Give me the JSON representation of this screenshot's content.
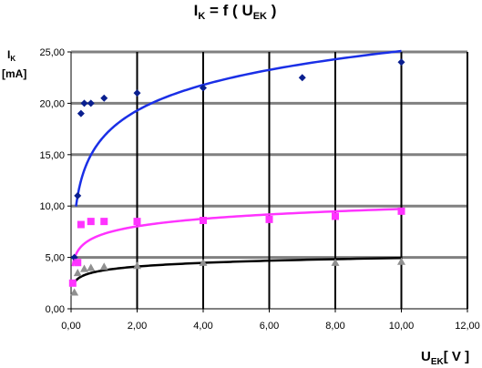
{
  "chart_data": {
    "type": "scatter",
    "title": {
      "main": "I",
      "sub": "K",
      "mid": " = f ( U",
      "sub2": "EK",
      "end": " )"
    },
    "ylabel": {
      "main": "I",
      "sub": "K",
      "unit": "[mA]"
    },
    "xlabel": {
      "main": "U",
      "sub": "EK",
      "unit": "[ V ]"
    },
    "xlim": [
      0,
      12
    ],
    "ylim": [
      0,
      25
    ],
    "xticks": [
      "0,00",
      "2,00",
      "4,00",
      "6,00",
      "8,00",
      "10,00",
      "12,00"
    ],
    "yticks": [
      "0,00",
      "5,00",
      "10,00",
      "15,00",
      "20,00",
      "25,00"
    ],
    "xtick_values": [
      0,
      2,
      4,
      6,
      8,
      10,
      12
    ],
    "ytick_values": [
      0,
      5,
      10,
      15,
      20,
      25
    ],
    "grid": "horizontal and vertical",
    "plot_background": "#ffffff",
    "grid_color": "#000000",
    "series": [
      {
        "marker": "diamond",
        "color": "#0a1f8f",
        "points": [
          [
            0.1,
            5.0
          ],
          [
            0.2,
            11.0
          ],
          [
            0.3,
            19.0
          ],
          [
            0.4,
            20.0
          ],
          [
            0.6,
            20.0
          ],
          [
            1.0,
            20.5
          ],
          [
            2.0,
            21.0
          ],
          [
            4.0,
            21.5
          ],
          [
            7.0,
            22.5
          ],
          [
            10.0,
            24.0
          ]
        ],
        "trend_color": "#1a2fe6",
        "trend": {
          "a": 16.8,
          "b": 3.6,
          "xmin": 0.15,
          "xmax": 10.0
        }
      },
      {
        "marker": "square",
        "color": "#ff33ff",
        "points": [
          [
            0.05,
            2.5
          ],
          [
            0.2,
            4.5
          ],
          [
            0.3,
            8.2
          ],
          [
            0.6,
            8.5
          ],
          [
            1.0,
            8.5
          ],
          [
            2.0,
            8.5
          ],
          [
            4.0,
            8.6
          ],
          [
            6.0,
            8.7
          ],
          [
            8.0,
            9.0
          ],
          [
            10.0,
            9.5
          ]
        ],
        "trend_color": "#ff33ff",
        "trend": {
          "a": 7.3,
          "b": 1.05,
          "xmin": 0.05,
          "xmax": 10.0
        }
      },
      {
        "marker": "triangle",
        "color": "#909090",
        "points": [
          [
            0.1,
            1.6
          ],
          [
            0.2,
            3.5
          ],
          [
            0.4,
            3.9
          ],
          [
            0.6,
            4.0
          ],
          [
            1.0,
            4.1
          ],
          [
            2.0,
            4.2
          ],
          [
            4.0,
            4.5
          ],
          [
            8.0,
            4.5
          ],
          [
            10.0,
            4.6
          ]
        ],
        "trend_color": "#000000",
        "trend": {
          "a": 3.75,
          "b": 0.52,
          "xmin": 0.08,
          "xmax": 10.0
        }
      }
    ]
  }
}
